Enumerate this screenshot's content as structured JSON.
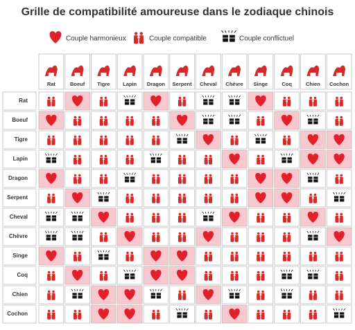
{
  "header": {
    "title": "Grille de compatibilité amoureuse dans le zodiaque chinois"
  },
  "legend": [
    {
      "kind": "heart",
      "label": "Couple harmonieux"
    },
    {
      "kind": "couple",
      "label": "Couple compatible"
    },
    {
      "kind": "fists",
      "label": "Couple conflictuel"
    }
  ],
  "table": {
    "columns": [
      "Rat",
      "Boeuf",
      "Tigre",
      "Lapin",
      "Dragon",
      "Serpent",
      "Cheval",
      "Chèvre",
      "Singe",
      "Coq",
      "Chien",
      "Cochon"
    ],
    "rows": [
      "Rat",
      "Boeuf",
      "Tigre",
      "Lapin",
      "Dragon",
      "Serpent",
      "Cheval",
      "Chèvre",
      "Singe",
      "Coq",
      "Chien",
      "Cochon"
    ],
    "cells": [
      [
        "couple",
        "heart",
        "couple",
        "fists",
        "heart",
        "couple",
        "fists",
        "fists",
        "heart",
        "couple",
        "couple",
        "couple"
      ],
      [
        "heart",
        "couple",
        "couple",
        "couple",
        "couple",
        "heart",
        "fists",
        "fists",
        "couple",
        "heart",
        "fists",
        "couple"
      ],
      [
        "couple",
        "couple",
        "couple",
        "couple",
        "couple",
        "fists",
        "heart",
        "couple",
        "fists",
        "couple",
        "heart",
        "heart"
      ],
      [
        "fists",
        "couple",
        "couple",
        "couple",
        "fists",
        "couple",
        "couple",
        "heart",
        "couple",
        "fists",
        "heart",
        "heart"
      ],
      [
        "heart",
        "couple",
        "couple",
        "fists",
        "couple",
        "couple",
        "couple",
        "couple",
        "heart",
        "heart",
        "fists",
        "couple"
      ],
      [
        "couple",
        "heart",
        "fists",
        "couple",
        "couple",
        "couple",
        "couple",
        "couple",
        "heart",
        "heart",
        "couple",
        "fists"
      ],
      [
        "fists",
        "fists",
        "heart",
        "couple",
        "couple",
        "couple",
        "fists",
        "heart",
        "couple",
        "couple",
        "heart",
        "couple"
      ],
      [
        "fists",
        "fists",
        "couple",
        "heart",
        "couple",
        "couple",
        "heart",
        "couple",
        "couple",
        "couple",
        "fists",
        "heart"
      ],
      [
        "heart",
        "couple",
        "fists",
        "couple",
        "heart",
        "heart",
        "couple",
        "couple",
        "couple",
        "couple",
        "couple",
        "couple"
      ],
      [
        "couple",
        "heart",
        "couple",
        "fists",
        "heart",
        "heart",
        "couple",
        "couple",
        "couple",
        "fists",
        "fists",
        "couple"
      ],
      [
        "couple",
        "fists",
        "heart",
        "heart",
        "fists",
        "couple",
        "heart",
        "fists",
        "couple",
        "fists",
        "couple",
        "couple"
      ],
      [
        "couple",
        "couple",
        "heart",
        "heart",
        "couple",
        "fists",
        "couple",
        "heart",
        "couple",
        "couple",
        "couple",
        "fists"
      ]
    ]
  }
}
